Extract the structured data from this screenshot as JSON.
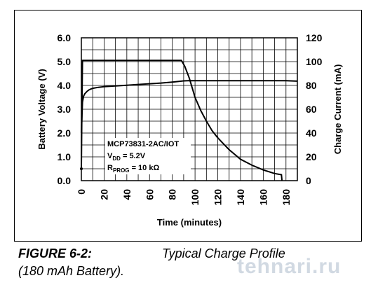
{
  "chart_data": {
    "type": "line",
    "xlabel": "Time (minutes)",
    "ylabel": "Battery Voltage (V)",
    "y2label": "Charge Current (mA)",
    "xlim": [
      0,
      190
    ],
    "ylim": [
      0,
      6
    ],
    "y2lim": [
      0,
      120
    ],
    "xticks": [
      "0",
      "20",
      "40",
      "60",
      "80",
      "100",
      "120",
      "140",
      "160",
      "180"
    ],
    "yticks": [
      "0.0",
      "1.0",
      "2.0",
      "3.0",
      "4.0",
      "5.0",
      "6.0"
    ],
    "y2ticks": [
      "0",
      "20",
      "40",
      "60",
      "80",
      "100",
      "120"
    ],
    "grid": true,
    "annotation": {
      "line1": "MCP73831-2AC/IOT",
      "line2_main": "V",
      "line2_sub": "DD",
      "line2_rest": " = 5.2V",
      "line3_main": "R",
      "line3_sub": "PROG",
      "line3_rest": " = 10 kΩ"
    },
    "series": [
      {
        "axis": "left",
        "x": [
          0,
          1,
          2,
          3,
          5,
          7,
          10,
          15,
          20,
          30,
          40,
          50,
          60,
          70,
          80,
          90,
          94,
          100,
          120,
          140,
          160,
          180,
          190
        ],
        "y": [
          2.0,
          3.3,
          3.55,
          3.65,
          3.75,
          3.82,
          3.88,
          3.92,
          3.95,
          3.98,
          4.01,
          4.04,
          4.07,
          4.1,
          4.14,
          4.19,
          4.2,
          4.2,
          4.2,
          4.2,
          4.2,
          4.2,
          4.18
        ]
      },
      {
        "axis": "right",
        "x": [
          0,
          0.5,
          1,
          5,
          20,
          40,
          60,
          80,
          88,
          91,
          95,
          100,
          105,
          110,
          115,
          120,
          130,
          140,
          150,
          160,
          170,
          176,
          176.5
        ],
        "y": [
          10,
          60,
          101,
          101,
          101,
          101,
          101,
          101,
          101,
          96,
          86,
          70,
          59,
          50,
          42,
          36,
          26,
          18,
          13,
          9,
          6,
          5,
          0
        ]
      }
    ]
  },
  "caption": {
    "label": "FIGURE 6-2:",
    "title": "Typical Charge Profile",
    "subtitle": "(180 mAh Battery)."
  },
  "watermark": "tehnari.ru"
}
